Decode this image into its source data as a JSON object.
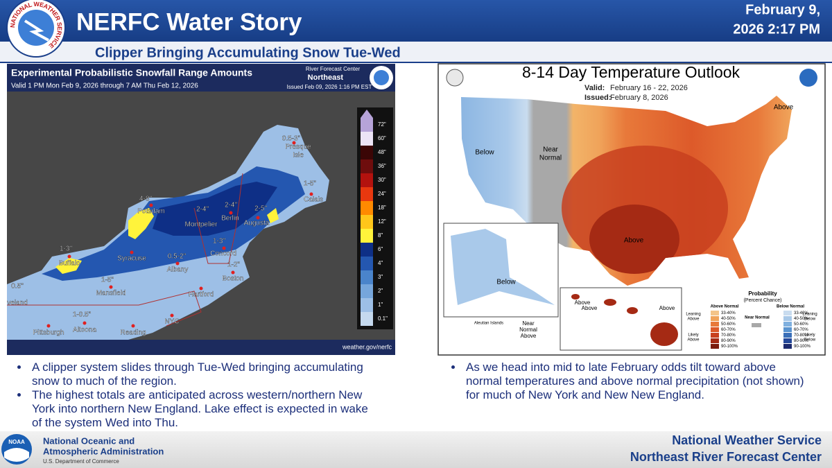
{
  "header": {
    "logo_text": "NATIONAL WEATHER SERVICE",
    "title": "NERFC Water Story",
    "date_line1": "February 9,",
    "date_line2": "2026 2:17 PM",
    "subtitle": "Clipper Bringing Accumulating Snow Tue-Wed"
  },
  "snow_map": {
    "title": "Experimental Probabilistic Snowfall Range Amounts",
    "valid": "Valid 1 PM Mon Feb 9, 2026 through 7 AM Thu Feb 12, 2026",
    "center": "River Forecast Center",
    "region": "Northeast",
    "issued": "Issued Feb 09, 2026 1:16 PM EST",
    "source": "weather.gov/nerfc",
    "legend": [
      {
        "label": "0.1\"",
        "color": "#c5d9ee"
      },
      {
        "label": "1\"",
        "color": "#9dbfe6"
      },
      {
        "label": "2\"",
        "color": "#76a6dc"
      },
      {
        "label": "3\"",
        "color": "#4a84cb"
      },
      {
        "label": "4\"",
        "color": "#2457b0"
      },
      {
        "label": "6\"",
        "color": "#0e2f86"
      },
      {
        "label": "8\"",
        "color": "#fff33b"
      },
      {
        "label": "12\"",
        "color": "#ffc61a"
      },
      {
        "label": "18\"",
        "color": "#ff8a00"
      },
      {
        "label": "24\"",
        "color": "#e8380f"
      },
      {
        "label": "30\"",
        "color": "#b3120e"
      },
      {
        "label": "36\"",
        "color": "#6e0d0d"
      },
      {
        "label": "48\"",
        "color": "#3b0606"
      },
      {
        "label": "60\"",
        "color": "#ece4f6"
      },
      {
        "label": "72\"",
        "color": "#b6a3d8"
      }
    ],
    "places": [
      "0.5-3\"",
      "Presque",
      "Isle",
      "1-5\"",
      "Calais",
      "4-8\"",
      "Potsdam",
      "2-4\"",
      "2-4\"",
      "Berlin",
      "2-5\"",
      "Augusta",
      "Montpelier",
      "1-3\"",
      "Concord",
      "1-3\"",
      "Buffalo",
      "Syracuse",
      "0.5-2\"",
      "Albany",
      "1-2\"",
      "Boston",
      "1-5\"",
      "Mansfield",
      "Hartford",
      "0.5\"",
      "veland",
      "1-0.5\"",
      "NYC",
      "Pittsburgh",
      "Altoona",
      "Reading"
    ]
  },
  "temp_map": {
    "title": "8-14 Day Temperature Outlook",
    "valid_label": "Valid:",
    "valid": "February 16 - 22, 2026",
    "issued_label": "Issued:",
    "issued": "February 8, 2026",
    "regions": [
      "Below",
      "Near",
      "Normal",
      "Above",
      "Above",
      "Below",
      "Above",
      "Above",
      "Above",
      "Aleutian Islands",
      "Near",
      "Normal",
      "Above"
    ],
    "legend_title": "Probability",
    "legend_subtitle": "(Percent Chance)",
    "above_header": "Above Normal",
    "below_header": "Below Normal",
    "near_header": "Near Normal",
    "above": [
      {
        "label": "33-40%",
        "color": "#f4c489"
      },
      {
        "label": "40-50%",
        "color": "#f0a35a"
      },
      {
        "label": "50-60%",
        "color": "#e8793a"
      },
      {
        "label": "60-70%",
        "color": "#dd5a2a"
      },
      {
        "label": "70-80%",
        "color": "#c8401e"
      },
      {
        "label": "80-90%",
        "color": "#a52a14"
      },
      {
        "label": "90-100%",
        "color": "#7a1a0c"
      }
    ],
    "below": [
      {
        "label": "33-40%",
        "color": "#c9dcef"
      },
      {
        "label": "40-50%",
        "color": "#a8c8e8"
      },
      {
        "label": "50-60%",
        "color": "#7fb0df"
      },
      {
        "label": "60-70%",
        "color": "#5a94d0"
      },
      {
        "label": "70-80%",
        "color": "#3a6fb8"
      },
      {
        "label": "80-90%",
        "color": "#24489a"
      },
      {
        "label": "90-100%",
        "color": "#1c2a6e"
      }
    ],
    "side_labels": [
      "Leaning",
      "Above",
      "Likely",
      "Above",
      "Leaning",
      "Below",
      "Likely",
      "Below"
    ]
  },
  "bullets_left": [
    "A clipper system slides through Tue-Wed bringing accumulating snow to much of the region.",
    "The highest totals are anticipated across western/northern New York into northern New England. Lake effect is expected in wake of the system Wed into Thu."
  ],
  "bullets_right": [
    "As we head into mid to late February odds tilt toward above normal temperatures and above normal precipitation (not shown) for much of New York and New New England."
  ],
  "footer": {
    "logo": "NOAA",
    "agency_line1": "National Oceanic and",
    "agency_line2": "Atmospheric Administration",
    "department": "U.S. Department of Commerce",
    "nws": "National Weather Service",
    "center": "Northeast River Forecast Center"
  }
}
